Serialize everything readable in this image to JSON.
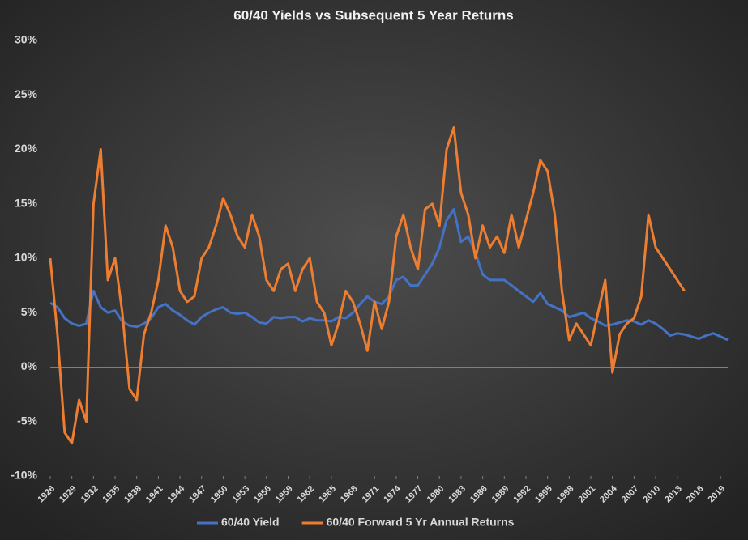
{
  "chart_data": {
    "type": "line",
    "title": "60/40 Yields vs Subsequent 5 Year Returns",
    "x": [
      1926,
      1927,
      1928,
      1929,
      1930,
      1931,
      1932,
      1933,
      1934,
      1935,
      1936,
      1937,
      1938,
      1939,
      1940,
      1941,
      1942,
      1943,
      1944,
      1945,
      1946,
      1947,
      1948,
      1949,
      1950,
      1951,
      1952,
      1953,
      1954,
      1955,
      1956,
      1957,
      1958,
      1959,
      1960,
      1961,
      1962,
      1963,
      1964,
      1965,
      1966,
      1967,
      1968,
      1969,
      1970,
      1971,
      1972,
      1973,
      1974,
      1975,
      1976,
      1977,
      1978,
      1979,
      1980,
      1981,
      1982,
      1983,
      1984,
      1985,
      1986,
      1987,
      1988,
      1989,
      1990,
      1991,
      1992,
      1993,
      1994,
      1995,
      1996,
      1997,
      1998,
      1999,
      2000,
      2001,
      2002,
      2003,
      2004,
      2005,
      2006,
      2007,
      2008,
      2009,
      2010,
      2011,
      2012,
      2013,
      2014,
      2015,
      2016,
      2017,
      2018,
      2019,
      2020
    ],
    "series": [
      {
        "name": "60/40 Yield",
        "color": "#4472c4",
        "values": [
          5.9,
          5.5,
          4.5,
          4.0,
          3.8,
          4.0,
          7.0,
          5.5,
          5.0,
          5.2,
          4.2,
          3.8,
          3.7,
          4.0,
          4.5,
          5.5,
          5.8,
          5.2,
          4.8,
          4.3,
          3.9,
          4.6,
          5.0,
          5.3,
          5.5,
          5.0,
          4.9,
          5.0,
          4.6,
          4.1,
          4.0,
          4.6,
          4.5,
          4.6,
          4.6,
          4.2,
          4.5,
          4.3,
          4.3,
          4.2,
          4.6,
          4.5,
          5.0,
          5.8,
          6.5,
          6.0,
          5.8,
          6.5,
          8.0,
          8.3,
          7.5,
          7.5,
          8.5,
          9.5,
          11.0,
          13.5,
          14.5,
          11.5,
          12.0,
          10.5,
          8.5,
          8.0,
          8.0,
          8.0,
          7.5,
          7.0,
          6.5,
          6.0,
          6.8,
          5.8,
          5.5,
          5.2,
          4.6,
          4.8,
          5.0,
          4.5,
          4.2,
          3.8,
          3.9,
          4.1,
          4.3,
          4.2,
          3.9,
          4.3,
          4.0,
          3.5,
          2.9,
          3.1,
          3.0,
          2.8,
          2.6,
          2.9,
          3.1,
          2.8,
          2.5
        ]
      },
      {
        "name": "60/40 Forward 5 Yr Annual Returns",
        "color": "#ed7d31",
        "values": [
          10,
          3,
          -6,
          -7,
          -3,
          -5,
          15,
          20,
          8,
          10,
          5,
          -2,
          -3,
          3,
          5,
          8,
          13,
          11,
          7,
          6,
          6.5,
          10,
          11,
          13,
          15.5,
          14,
          12,
          11,
          14,
          12,
          8,
          7,
          9,
          9.5,
          7,
          9,
          10,
          6,
          5,
          2,
          4,
          7,
          6,
          4,
          1.5,
          6,
          3.5,
          6,
          12,
          14,
          11,
          9,
          14.5,
          15,
          13,
          20,
          22,
          16,
          14,
          10,
          13,
          11,
          12,
          10.5,
          14,
          11,
          13.5,
          16,
          19,
          18,
          14,
          7,
          2.5,
          4,
          3,
          2,
          5,
          8,
          -0.5,
          3,
          4,
          4.5,
          6.5,
          14,
          11,
          10,
          9,
          8,
          7,
          null,
          null,
          null,
          null,
          null,
          null
        ]
      }
    ],
    "xlim": [
      1926,
      2020
    ],
    "xticks": [
      1926,
      1929,
      1932,
      1935,
      1938,
      1941,
      1944,
      1947,
      1950,
      1953,
      1956,
      1959,
      1962,
      1965,
      1968,
      1971,
      1974,
      1977,
      1980,
      1983,
      1986,
      1989,
      1992,
      1995,
      1998,
      2001,
      2004,
      2007,
      2010,
      2013,
      2016,
      2019
    ],
    "ylim": [
      -10,
      30
    ],
    "yticks": [
      {
        "value": 30,
        "label": "30%"
      },
      {
        "value": 25,
        "label": "25%"
      },
      {
        "value": 20,
        "label": "20%"
      },
      {
        "value": 15,
        "label": "15%"
      },
      {
        "value": 10,
        "label": "10%"
      },
      {
        "value": 5,
        "label": "5%"
      },
      {
        "value": 0,
        "label": "0%"
      },
      {
        "value": -5,
        "label": "-5%"
      },
      {
        "value": -10,
        "label": "-10%"
      }
    ],
    "legend": "bottom"
  }
}
